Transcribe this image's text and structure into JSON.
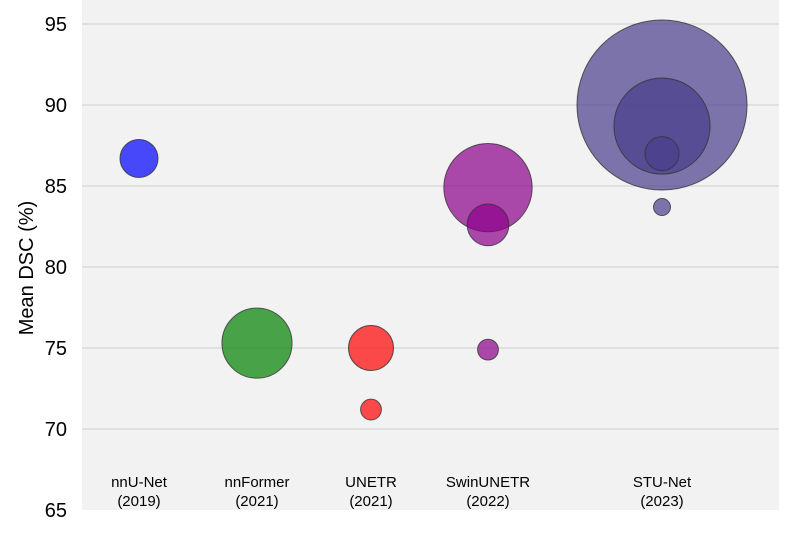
{
  "chart_data": {
    "type": "scatter",
    "ylabel": "Mean DSC (%)",
    "ylim": [
      65,
      95
    ],
    "yticks": [
      65,
      70,
      75,
      80,
      85,
      90,
      95
    ],
    "grid": true,
    "background": "#f2f2f2",
    "categories": [
      {
        "name": "nnU-Net",
        "year": "(2019)"
      },
      {
        "name": "nnFormer",
        "year": "(2021)"
      },
      {
        "name": "UNETR",
        "year": "(2021)"
      },
      {
        "name": "SwinUNETR",
        "year": "(2022)"
      },
      {
        "name": "STU-Net",
        "year": "(2023)"
      }
    ],
    "series": [
      {
        "category": "nnU-Net",
        "color": "#0000ff",
        "points": [
          {
            "y": 86.7,
            "size": 0.05
          }
        ]
      },
      {
        "category": "nnFormer",
        "color": "#008000",
        "points": [
          {
            "y": 75.3,
            "size": 0.17
          }
        ]
      },
      {
        "category": "UNETR",
        "color": "#ff0000",
        "points": [
          {
            "y": 75.0,
            "size": 0.07
          },
          {
            "y": 71.2,
            "size": 0.015
          }
        ]
      },
      {
        "category": "SwinUNETR",
        "color": "#8b008b",
        "points": [
          {
            "y": 84.9,
            "size": 0.27
          },
          {
            "y": 82.6,
            "size": 0.06
          },
          {
            "y": 74.9,
            "size": 0.015
          }
        ]
      },
      {
        "category": "STU-Net",
        "color": "#483d8b",
        "points": [
          {
            "y": 90.0,
            "size": 1.0
          },
          {
            "y": 88.7,
            "size": 0.32
          },
          {
            "y": 87.0,
            "size": 0.04
          },
          {
            "y": 83.7,
            "size": 0.01
          }
        ]
      }
    ]
  }
}
